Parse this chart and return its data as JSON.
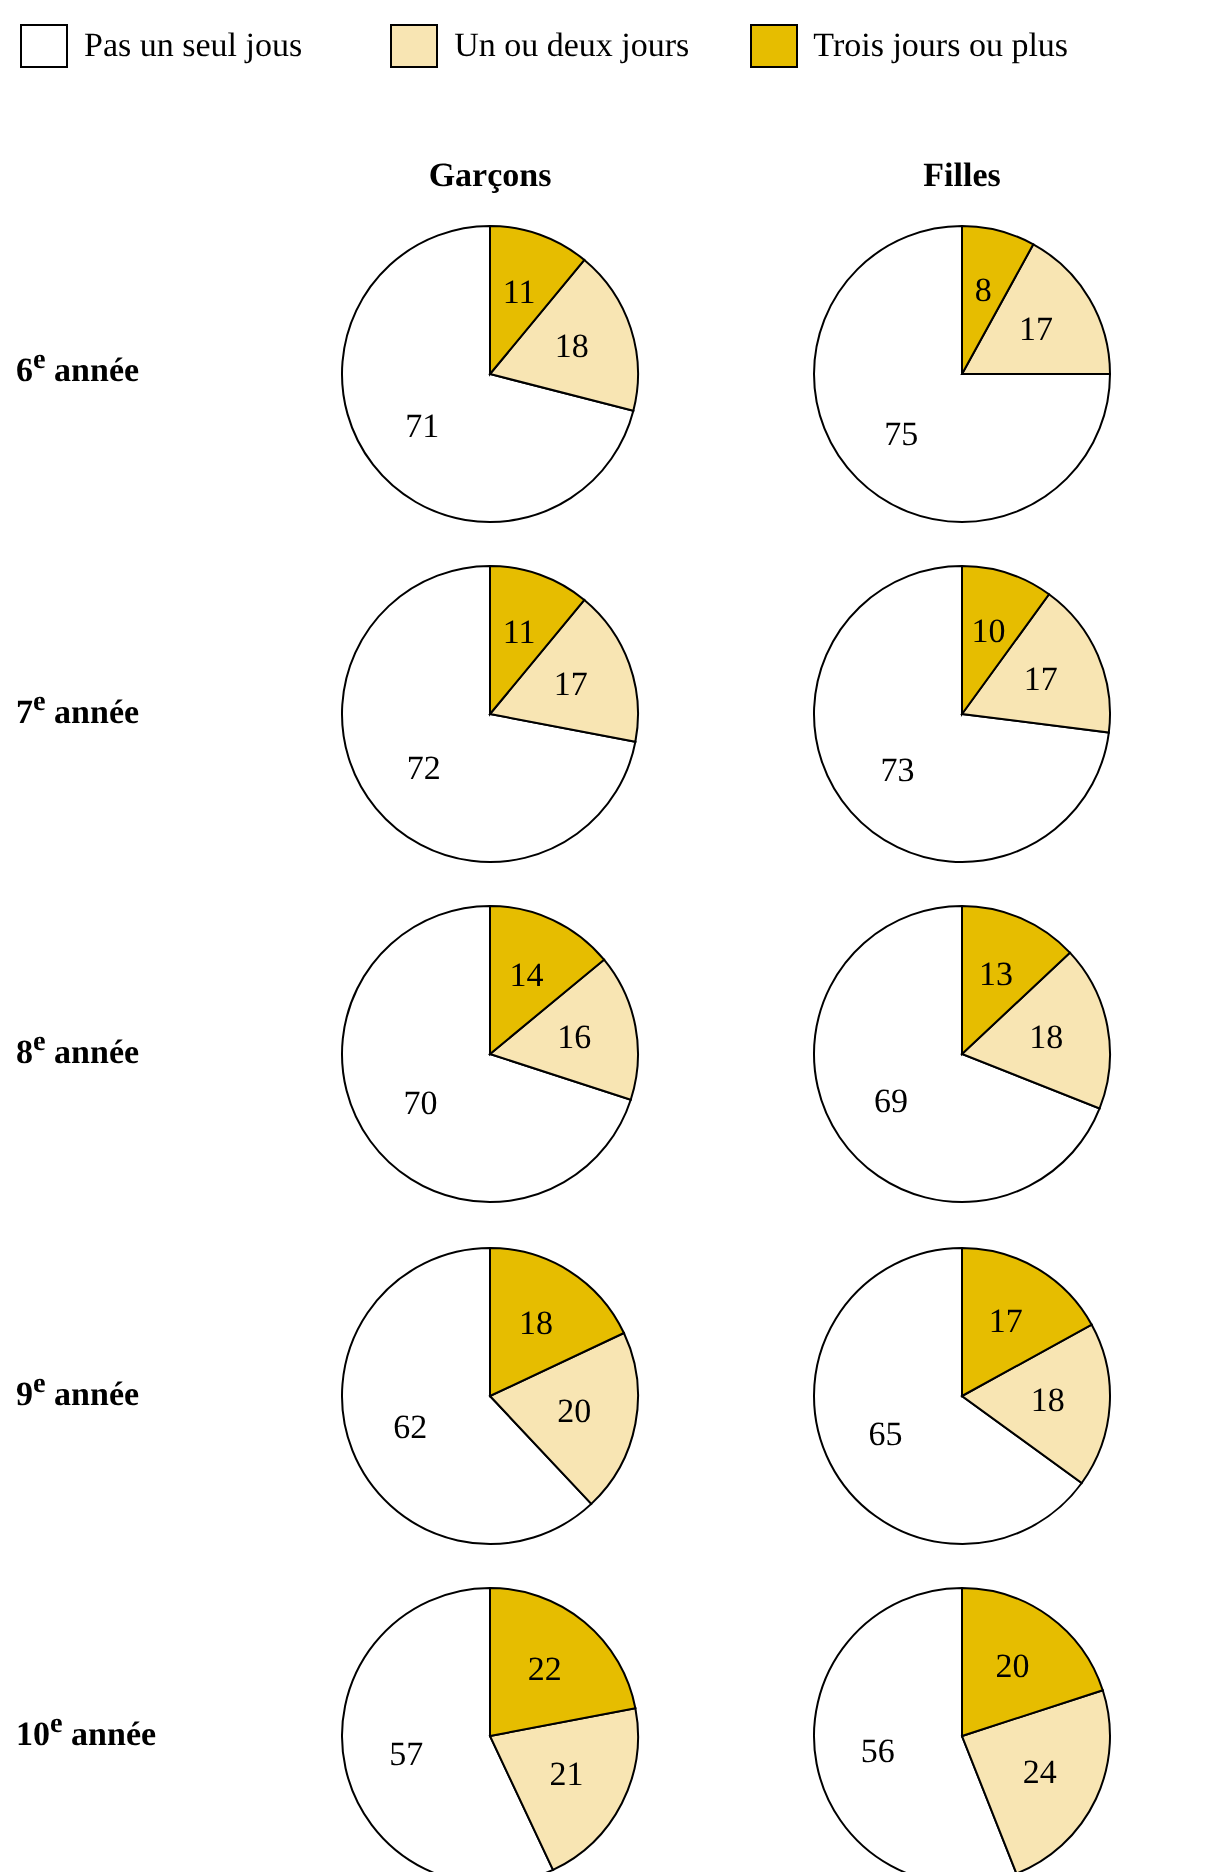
{
  "chart_data": [
    {
      "type": "pie",
      "title": "Garçons",
      "ylabel": "6$^{e}$ année",
      "legend": "top",
      "categories": [
        "Pas un seul jous",
        "Un ou deux jours",
        "Trois jours ou plus"
      ],
      "values": [
        71,
        18,
        11
      ],
      "colors": [
        "#ffffff",
        "#f8e5b3",
        "#e6bd00"
      ],
      "data_labels": true
    },
    {
      "type": "pie",
      "title": "Filles",
      "values": [
        75,
        17,
        8
      ],
      "colors": [
        "#ffffff",
        "#f8e5b3",
        "#e6bd00"
      ],
      "data_labels": true
    },
    {
      "type": "pie",
      "ylabel": "7$^{e}$ année",
      "values": [
        72,
        17,
        11
      ],
      "colors": [
        "#ffffff",
        "#f8e5b3",
        "#e6bd00"
      ],
      "data_labels": true
    },
    {
      "type": "pie",
      "values": [
        73,
        17,
        10
      ],
      "colors": [
        "#ffffff",
        "#f8e5b3",
        "#e6bd00"
      ],
      "data_labels": true
    },
    {
      "type": "pie",
      "ylabel": "8$^{e}$ année",
      "values": [
        70,
        16,
        14
      ],
      "colors": [
        "#ffffff",
        "#f8e5b3",
        "#e6bd00"
      ],
      "data_labels": true
    },
    {
      "type": "pie",
      "values": [
        69,
        18,
        13
      ],
      "colors": [
        "#ffffff",
        "#f8e5b3",
        "#e6bd00"
      ],
      "data_labels": true
    },
    {
      "type": "pie",
      "ylabel": "9$^{e}$ année",
      "values": [
        62,
        20,
        18
      ],
      "colors": [
        "#ffffff",
        "#f8e5b3",
        "#e6bd00"
      ],
      "data_labels": true
    },
    {
      "type": "pie",
      "values": [
        65,
        18,
        17
      ],
      "colors": [
        "#ffffff",
        "#f8e5b3",
        "#e6bd00"
      ],
      "data_labels": true
    },
    {
      "type": "pie",
      "ylabel": "10$^{e}$ année",
      "values": [
        57,
        21,
        22
      ],
      "colors": [
        "#ffffff",
        "#f8e5b3",
        "#e6bd00"
      ],
      "data_labels": true
    },
    {
      "type": "pie",
      "values": [
        56,
        24,
        20
      ],
      "colors": [
        "#ffffff",
        "#f8e5b3",
        "#e6bd00"
      ],
      "data_labels": true
    }
  ]
}
